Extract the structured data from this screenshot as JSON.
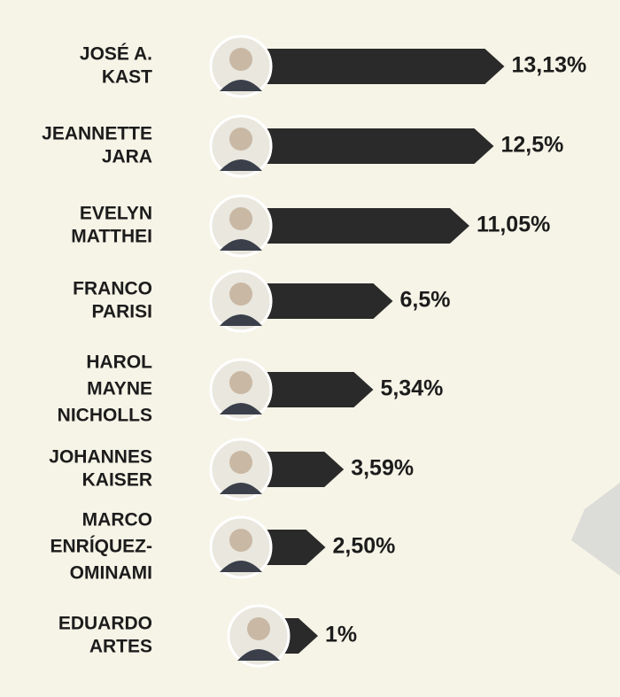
{
  "chart_data": {
    "type": "bar",
    "categories": [
      [
        "JOSÉ A.",
        "KAST"
      ],
      [
        "JEANNETTE",
        "JARA"
      ],
      [
        "EVELYN",
        "MATTHEI"
      ],
      [
        "FRANCO",
        "PARISI"
      ],
      [
        "HAROL",
        "MAYNE",
        "NICHOLLS"
      ],
      [
        "JOHANNES",
        "KAISER"
      ],
      [
        "MARCO",
        "ENRÍQUEZ-",
        "OMINAMI"
      ],
      [
        "EDUARDO",
        "ARTES"
      ]
    ],
    "values": [
      13.13,
      12.5,
      11.05,
      6.5,
      5.34,
      3.59,
      2.5,
      1
    ],
    "value_labels": [
      "13,13%",
      "12,5%",
      "11,05%",
      "6,5%",
      "5,34%",
      "3,59%",
      "2,50%",
      "1%"
    ],
    "color": "#2a2a2a"
  }
}
